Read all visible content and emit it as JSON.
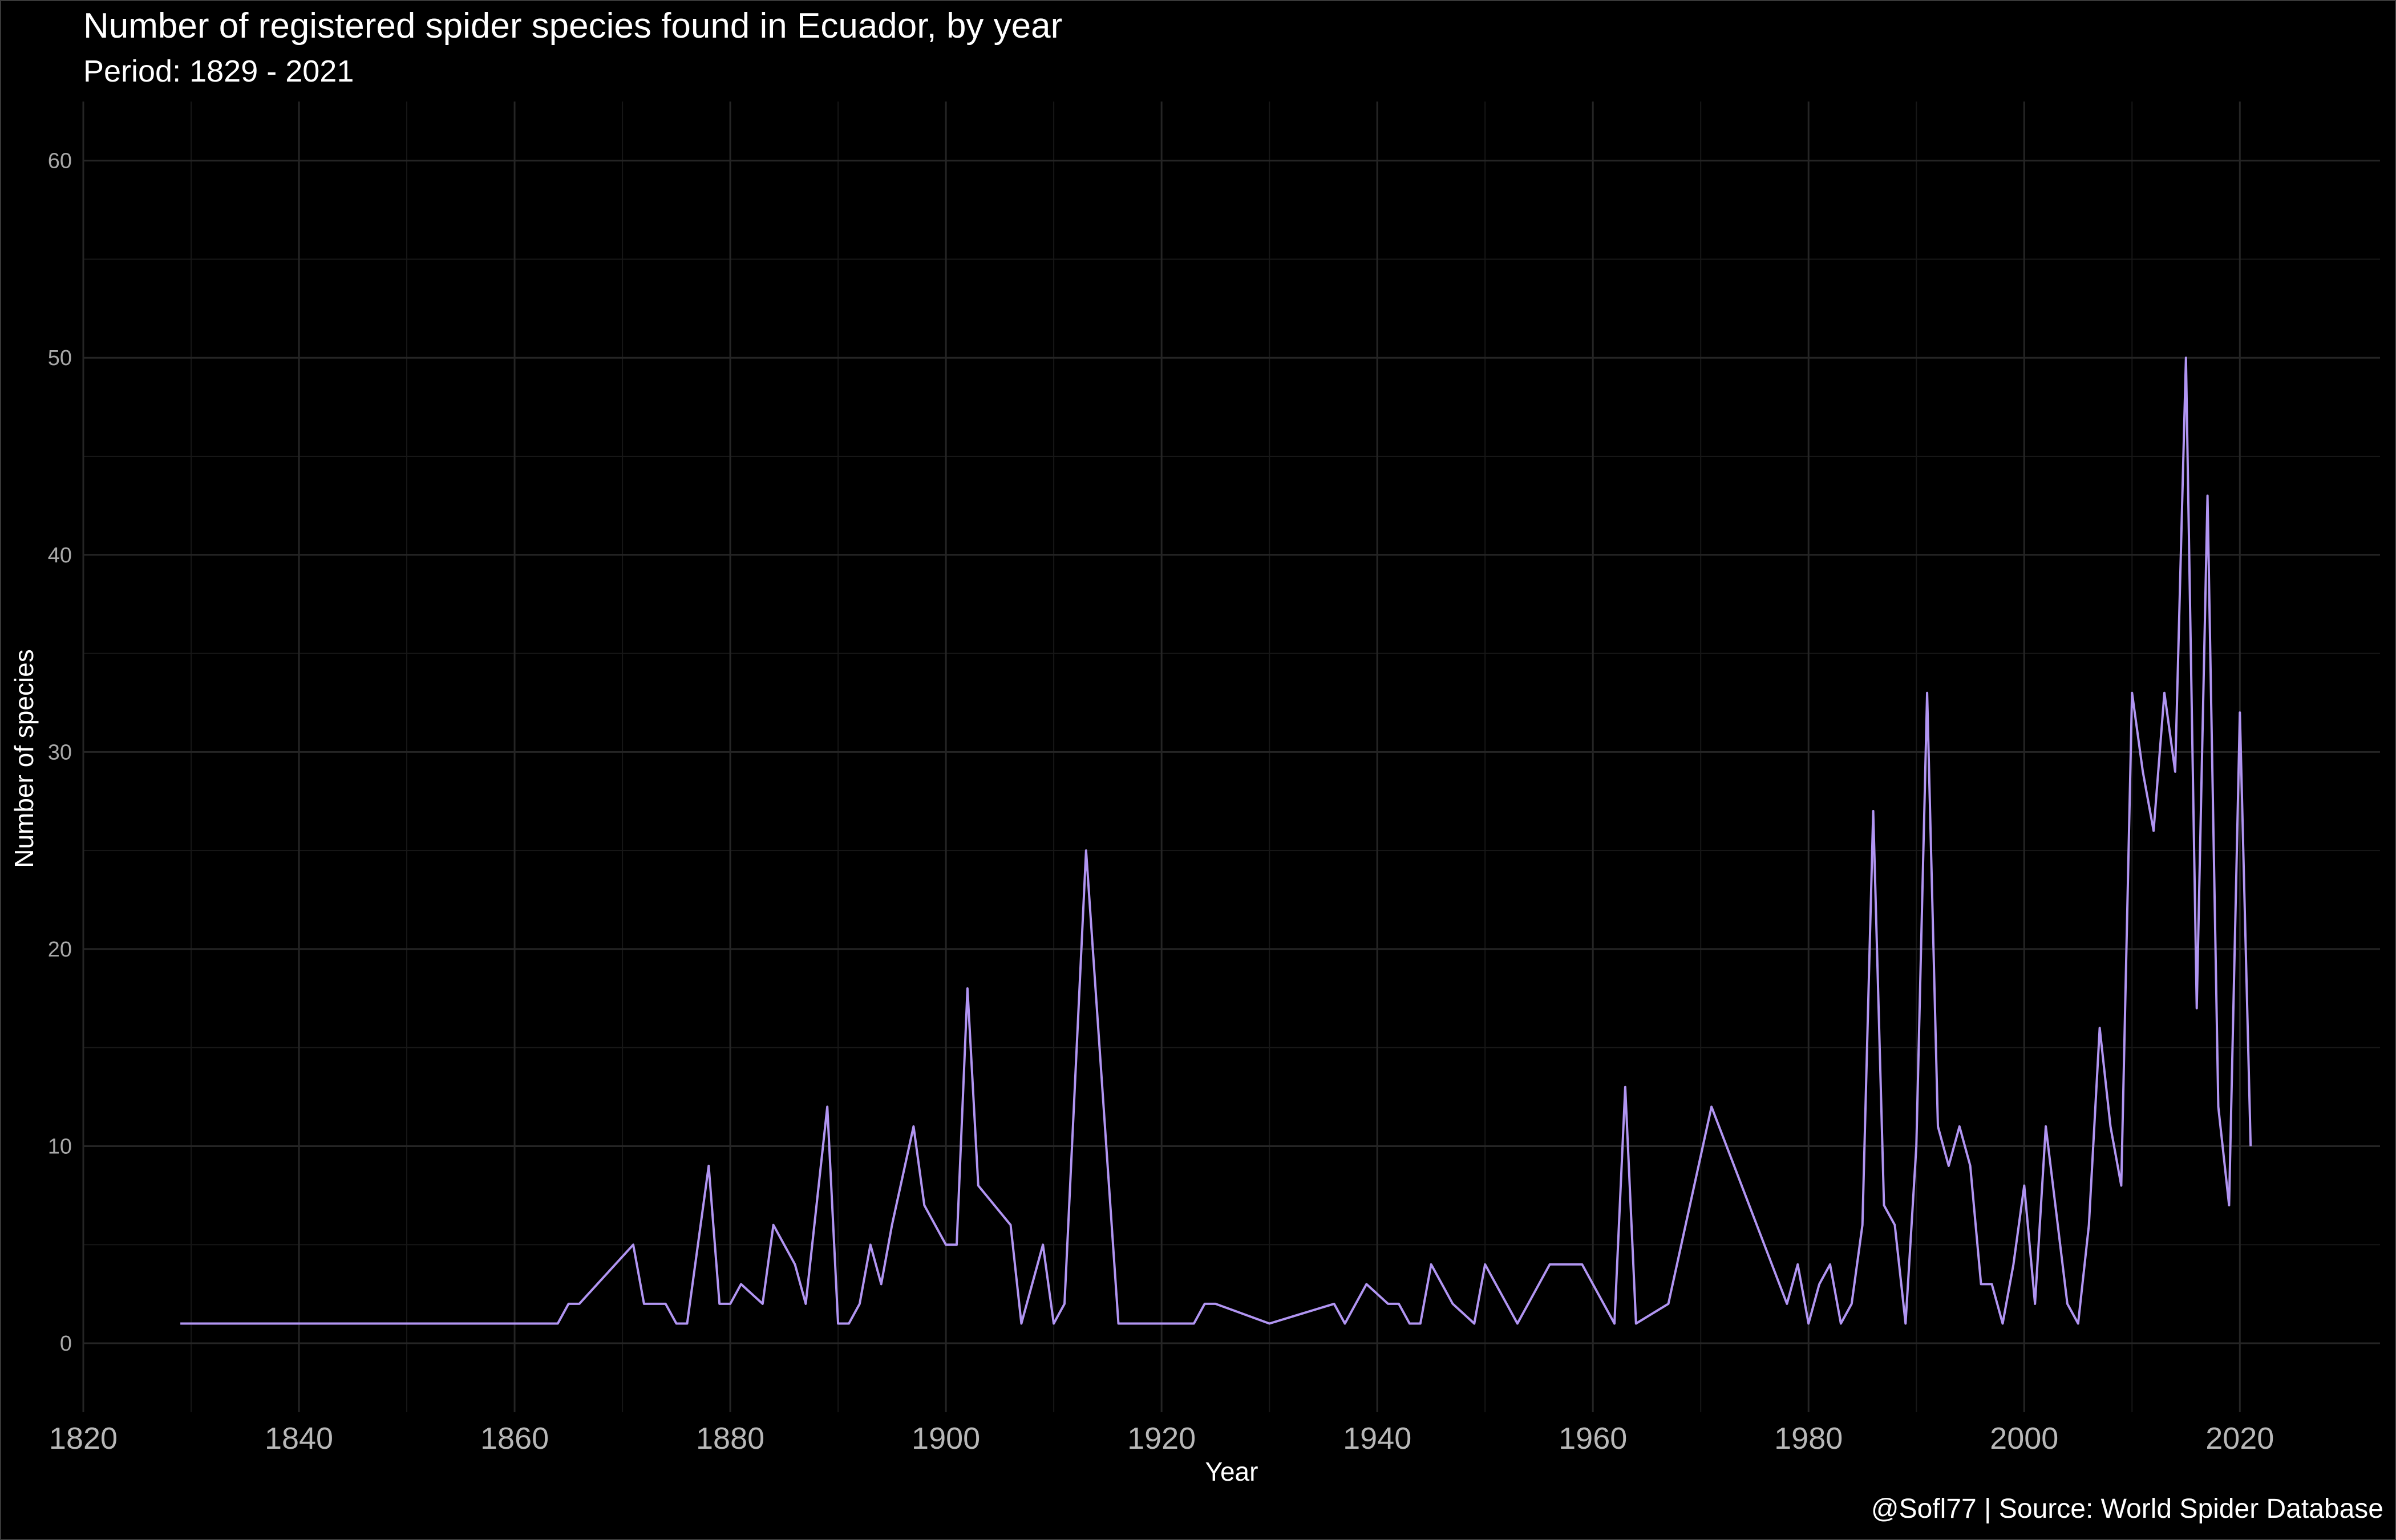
{
  "chart_data": {
    "type": "line",
    "title": "Number of registered spider species found in Ecuador, by year",
    "subtitle": "Period: 1829 - 2021",
    "caption": "@Sofl77 | Source: World Spider Database",
    "xlabel": "Year",
    "ylabel": "Number of species",
    "xlim": [
      1820,
      2033
    ],
    "ylim": [
      -3.5,
      63
    ],
    "x_ticks": [
      1820,
      1840,
      1860,
      1880,
      1900,
      1920,
      1940,
      1960,
      1980,
      2000,
      2020
    ],
    "y_ticks": [
      0,
      10,
      20,
      30,
      40,
      50,
      60
    ],
    "grid": true,
    "line_color": "#b195f2",
    "background": "#000000",
    "series": [
      {
        "x": [
          1829,
          1864,
          1865,
          1866,
          1871,
          1872,
          1874,
          1875,
          1876,
          1878,
          1879,
          1880,
          1881,
          1883,
          1884,
          1886,
          1887,
          1889,
          1890,
          1891,
          1892,
          1893,
          1894,
          1895,
          1897,
          1898,
          1900,
          1901,
          1902,
          1903,
          1906,
          1907,
          1909,
          1910,
          1911,
          1913,
          1916,
          1923,
          1924,
          1925,
          1930,
          1936,
          1937,
          1939,
          1941,
          1942,
          1943,
          1944,
          1945,
          1947,
          1949,
          1950,
          1953,
          1956,
          1959,
          1962,
          1963,
          1964,
          1967,
          1971,
          1978,
          1979,
          1980,
          1981,
          1982,
          1983,
          1984,
          1985,
          1986,
          1987,
          1988,
          1989,
          1990,
          1991,
          1992,
          1993,
          1994,
          1995,
          1996,
          1997,
          1998,
          1999,
          2000,
          2001,
          2002,
          2004,
          2005,
          2006,
          2007,
          2008,
          2009,
          2010,
          2011,
          2012,
          2013,
          2014,
          2015,
          2016,
          2017,
          2018,
          2019,
          2020,
          2021
        ],
        "y": [
          1,
          1,
          2,
          2,
          5,
          2,
          2,
          1,
          1,
          9,
          2,
          2,
          3,
          2,
          6,
          4,
          2,
          12,
          1,
          1,
          2,
          5,
          3,
          6,
          11,
          7,
          5,
          5,
          18,
          8,
          6,
          1,
          5,
          1,
          2,
          25,
          1,
          1,
          2,
          2,
          1,
          2,
          1,
          3,
          2,
          2,
          1,
          1,
          4,
          2,
          1,
          4,
          1,
          4,
          4,
          1,
          13,
          1,
          2,
          12,
          2,
          4,
          1,
          3,
          4,
          1,
          2,
          6,
          27,
          7,
          6,
          1,
          10,
          33,
          11,
          9,
          11,
          9,
          3,
          3,
          1,
          4,
          8,
          2,
          11,
          2,
          1,
          6,
          16,
          11,
          8,
          33,
          29,
          26,
          33,
          29,
          50,
          17,
          43,
          12,
          7,
          32,
          10
        ]
      }
    ]
  }
}
